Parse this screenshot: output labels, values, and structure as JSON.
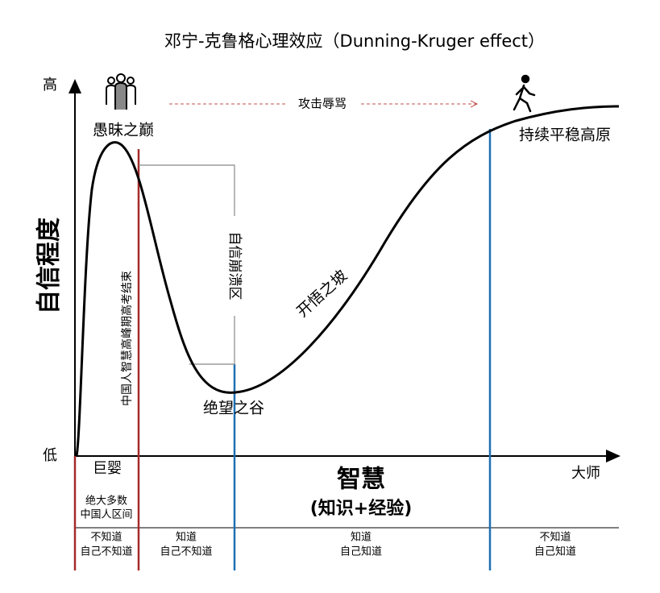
{
  "title": "邓宁-克鲁格心理效应（Dunning-Kruger effect）",
  "y_axis": {
    "label": "自信程度",
    "high": "高",
    "low": "低"
  },
  "x_axis": {
    "label": "智慧",
    "sublabel": "(知识+经验)",
    "start": "巨婴",
    "end": "大师"
  },
  "stages": {
    "peak": "愚昧之巅",
    "valley": "绝望之谷",
    "slope": "开悟之坡",
    "plateau": "持续平稳高原"
  },
  "annotations": {
    "attack": "攻击辱骂",
    "collapse": "自信崩溃区",
    "exam": "中国人智慧高峰期高考结束",
    "majority": [
      "绝大多数",
      "中国人区间"
    ]
  },
  "quadrants": [
    [
      "不知道",
      "自己不知道"
    ],
    [
      "知道",
      "自己不知道"
    ],
    [
      "知道",
      "自己知道"
    ],
    [
      "不知道",
      "自己知道"
    ]
  ]
}
